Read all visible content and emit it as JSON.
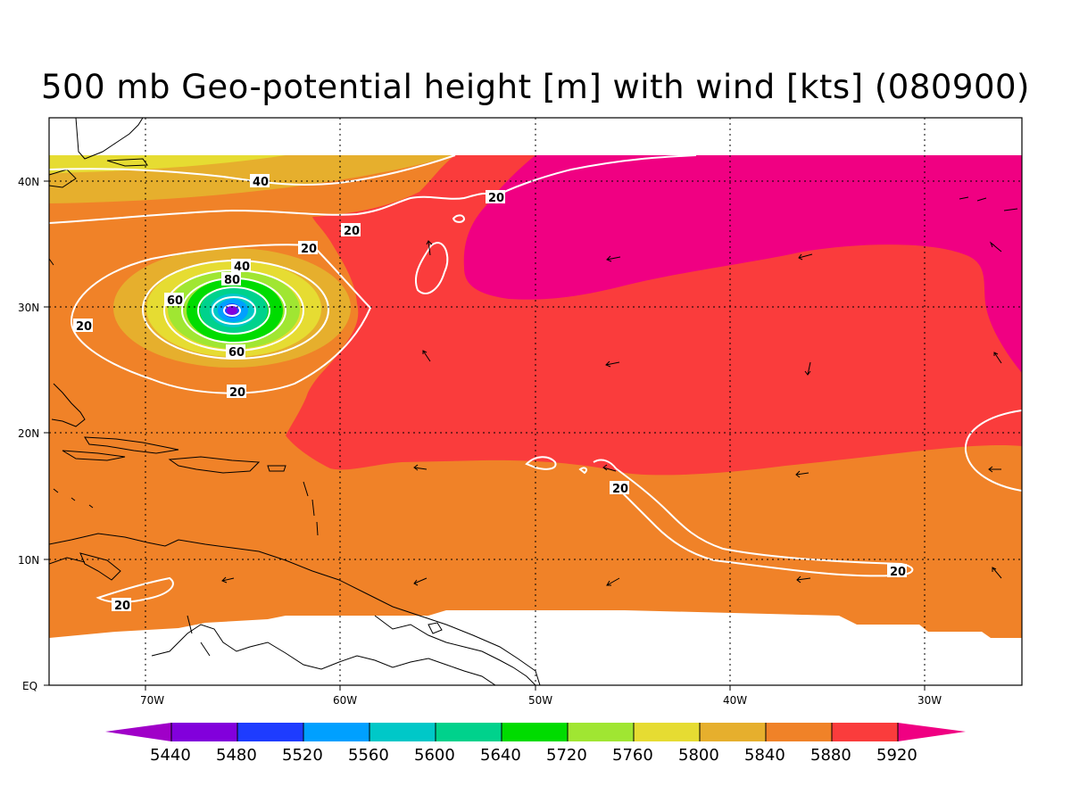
{
  "title": "500 mb Geo-potential height [m] with wind [kts] (080900)",
  "colors": {
    "h5440": "#a000c8",
    "h5480": "#8200dc",
    "h5520": "#1e3cff",
    "h5560": "#00a0ff",
    "h5600": "#00c8c8",
    "h5640": "#00d28c",
    "h5720": "#00dc00",
    "h5760": "#a0e632",
    "h5800": "#e6dc32",
    "h5840": "#e6af2d",
    "h5880": "#f08228",
    "h5920": "#fa3c3c",
    "h5920plus": "#f00082",
    "land": "#000000",
    "contour": "#ffffff"
  },
  "axes": {
    "x_ticks": [
      "70W",
      "60W",
      "50W",
      "40W",
      "30W"
    ],
    "y_ticks": [
      "40N",
      "30N",
      "20N",
      "10N",
      "EQ"
    ],
    "lon_range": [
      -75,
      -25
    ],
    "lat_range": [
      0,
      45
    ],
    "grid": true
  },
  "colorbar": {
    "levels": [
      "5440",
      "5480",
      "5520",
      "5560",
      "5600",
      "5640",
      "5720",
      "5760",
      "5800",
      "5840",
      "5880",
      "5920"
    ]
  },
  "wind_contour_labels": [
    "40",
    "20",
    "20",
    "20",
    "40",
    "80",
    "60",
    "20",
    "60",
    "20",
    "20",
    "20",
    "20"
  ]
}
